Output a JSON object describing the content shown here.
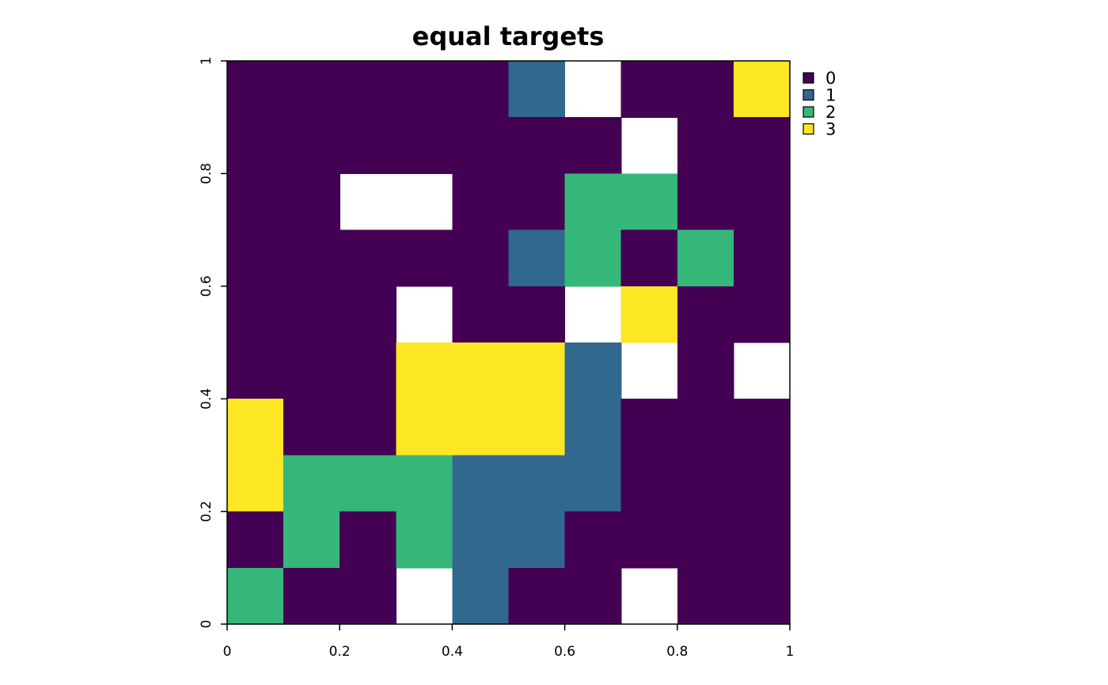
{
  "chart_data": {
    "type": "heatmap",
    "title": "equal targets",
    "xlabel": "",
    "ylabel": "",
    "xlim": [
      0,
      1
    ],
    "ylim": [
      0,
      1
    ],
    "x_ticks": [
      0,
      0.2,
      0.4,
      0.6,
      0.8,
      1
    ],
    "x_tick_labels": [
      "0",
      "0.2",
      "0.4",
      "0.6",
      "0.8",
      "1"
    ],
    "y_ticks": [
      0,
      0.2,
      0.4,
      0.6,
      0.8,
      1
    ],
    "y_tick_labels": [
      "0",
      "0.2",
      "0.4",
      "0.6",
      "0.8",
      "1"
    ],
    "n_cols": 10,
    "n_rows": 10,
    "legend_position": "right",
    "legend": [
      {
        "label": "0",
        "value": 0,
        "color": "#440154"
      },
      {
        "label": "1",
        "value": 1,
        "color": "#31688E"
      },
      {
        "label": "2",
        "value": 2,
        "color": "#35B779"
      },
      {
        "label": "3",
        "value": 3,
        "color": "#FDE725"
      }
    ],
    "grid_top_to_bottom": [
      [
        0,
        0,
        0,
        0,
        0,
        1,
        null,
        0,
        0,
        3
      ],
      [
        0,
        0,
        0,
        0,
        0,
        0,
        0,
        null,
        0,
        0
      ],
      [
        0,
        0,
        null,
        null,
        0,
        0,
        2,
        2,
        0,
        0
      ],
      [
        0,
        0,
        0,
        0,
        0,
        1,
        2,
        0,
        2,
        0
      ],
      [
        0,
        0,
        0,
        null,
        0,
        0,
        null,
        3,
        0,
        0
      ],
      [
        0,
        0,
        0,
        3,
        3,
        3,
        1,
        null,
        0,
        null
      ],
      [
        3,
        0,
        0,
        3,
        3,
        3,
        1,
        0,
        0,
        0
      ],
      [
        3,
        2,
        2,
        2,
        1,
        1,
        1,
        0,
        0,
        0
      ],
      [
        0,
        2,
        0,
        2,
        1,
        1,
        0,
        0,
        0,
        0
      ],
      [
        2,
        0,
        0,
        null,
        1,
        0,
        0,
        null,
        0,
        0
      ]
    ]
  }
}
